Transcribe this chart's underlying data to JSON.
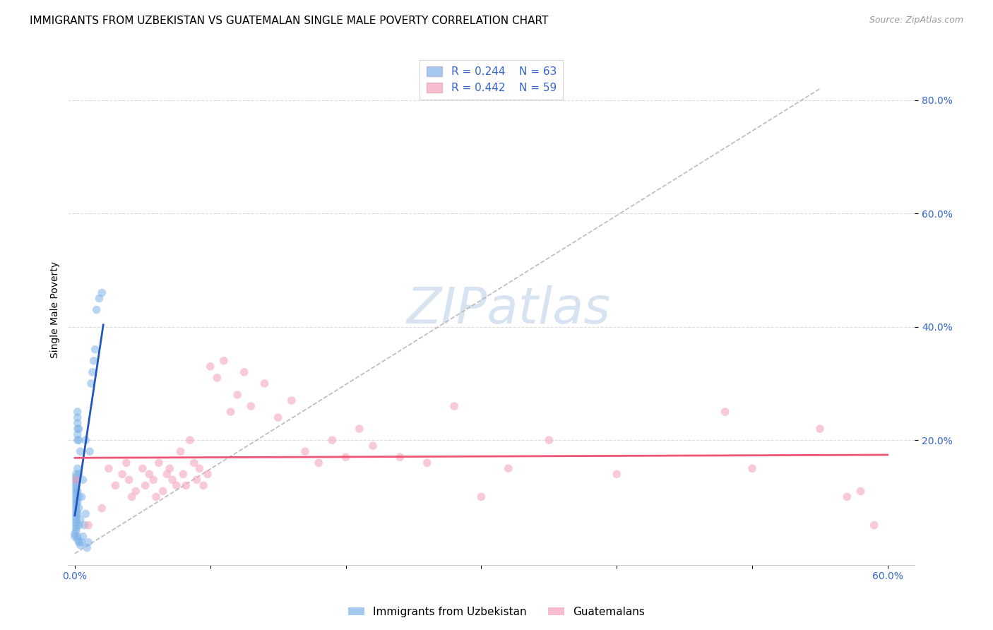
{
  "title": "IMMIGRANTS FROM UZBEKISTAN VS GUATEMALAN SINGLE MALE POVERTY CORRELATION CHART",
  "source": "Source: ZipAtlas.com",
  "ylabel": "Single Male Poverty",
  "x_tick_labels": [
    "0.0%",
    "",
    "",
    "",
    "",
    "",
    "60.0%"
  ],
  "x_tick_values": [
    0.0,
    0.1,
    0.2,
    0.3,
    0.4,
    0.5,
    0.6
  ],
  "y_tick_labels": [
    "20.0%",
    "40.0%",
    "60.0%",
    "80.0%"
  ],
  "y_tick_values": [
    0.2,
    0.4,
    0.6,
    0.8
  ],
  "xlim": [
    -0.005,
    0.62
  ],
  "ylim": [
    -0.02,
    0.88
  ],
  "legend_r1": "R = 0.244",
  "legend_n1": "N = 63",
  "legend_r2": "R = 0.442",
  "legend_n2": "N = 59",
  "series1_color": "#7EB3E8",
  "series2_color": "#F4A0B8",
  "trendline1_color": "#2255BB",
  "trendline2_color": "#EE5577",
  "dashed_line_color": "#BBBBBB",
  "watermark_color": "#C8D8EC",
  "background_color": "#FFFFFF",
  "series1_x": [
    0.0,
    0.0,
    0.001,
    0.001,
    0.001,
    0.001,
    0.001,
    0.001,
    0.001,
    0.001,
    0.001,
    0.001,
    0.001,
    0.001,
    0.001,
    0.001,
    0.001,
    0.001,
    0.001,
    0.001,
    0.001,
    0.001,
    0.001,
    0.002,
    0.002,
    0.002,
    0.002,
    0.002,
    0.002,
    0.002,
    0.002,
    0.002,
    0.002,
    0.002,
    0.002,
    0.002,
    0.003,
    0.003,
    0.003,
    0.003,
    0.003,
    0.003,
    0.003,
    0.004,
    0.004,
    0.004,
    0.005,
    0.005,
    0.006,
    0.006,
    0.007,
    0.008,
    0.008,
    0.009,
    0.01,
    0.011,
    0.012,
    0.013,
    0.014,
    0.015,
    0.016,
    0.018,
    0.02
  ],
  "series1_y": [
    0.03,
    0.035,
    0.04,
    0.045,
    0.05,
    0.055,
    0.06,
    0.065,
    0.07,
    0.075,
    0.08,
    0.085,
    0.09,
    0.095,
    0.1,
    0.105,
    0.11,
    0.115,
    0.12,
    0.125,
    0.13,
    0.135,
    0.14,
    0.025,
    0.03,
    0.07,
    0.09,
    0.11,
    0.13,
    0.15,
    0.2,
    0.21,
    0.22,
    0.23,
    0.24,
    0.25,
    0.02,
    0.05,
    0.08,
    0.1,
    0.14,
    0.2,
    0.22,
    0.015,
    0.06,
    0.18,
    0.02,
    0.1,
    0.03,
    0.13,
    0.05,
    0.07,
    0.2,
    0.01,
    0.02,
    0.18,
    0.3,
    0.32,
    0.34,
    0.36,
    0.43,
    0.45,
    0.46
  ],
  "series2_x": [
    0.001,
    0.01,
    0.02,
    0.025,
    0.03,
    0.035,
    0.038,
    0.04,
    0.042,
    0.045,
    0.05,
    0.052,
    0.055,
    0.058,
    0.06,
    0.062,
    0.065,
    0.068,
    0.07,
    0.072,
    0.075,
    0.078,
    0.08,
    0.082,
    0.085,
    0.088,
    0.09,
    0.092,
    0.095,
    0.098,
    0.1,
    0.105,
    0.11,
    0.115,
    0.12,
    0.125,
    0.13,
    0.14,
    0.15,
    0.16,
    0.17,
    0.18,
    0.19,
    0.2,
    0.21,
    0.22,
    0.24,
    0.26,
    0.28,
    0.3,
    0.32,
    0.35,
    0.4,
    0.48,
    0.5,
    0.55,
    0.57,
    0.58,
    0.59
  ],
  "series2_y": [
    0.13,
    0.05,
    0.08,
    0.15,
    0.12,
    0.14,
    0.16,
    0.13,
    0.1,
    0.11,
    0.15,
    0.12,
    0.14,
    0.13,
    0.1,
    0.16,
    0.11,
    0.14,
    0.15,
    0.13,
    0.12,
    0.18,
    0.14,
    0.12,
    0.2,
    0.16,
    0.13,
    0.15,
    0.12,
    0.14,
    0.33,
    0.31,
    0.34,
    0.25,
    0.28,
    0.32,
    0.26,
    0.3,
    0.24,
    0.27,
    0.18,
    0.16,
    0.2,
    0.17,
    0.22,
    0.19,
    0.17,
    0.16,
    0.26,
    0.1,
    0.15,
    0.2,
    0.14,
    0.25,
    0.15,
    0.22,
    0.1,
    0.11,
    0.05
  ],
  "title_fontsize": 11,
  "source_fontsize": 9,
  "axis_label_fontsize": 10,
  "tick_fontsize": 10,
  "legend_fontsize": 11
}
